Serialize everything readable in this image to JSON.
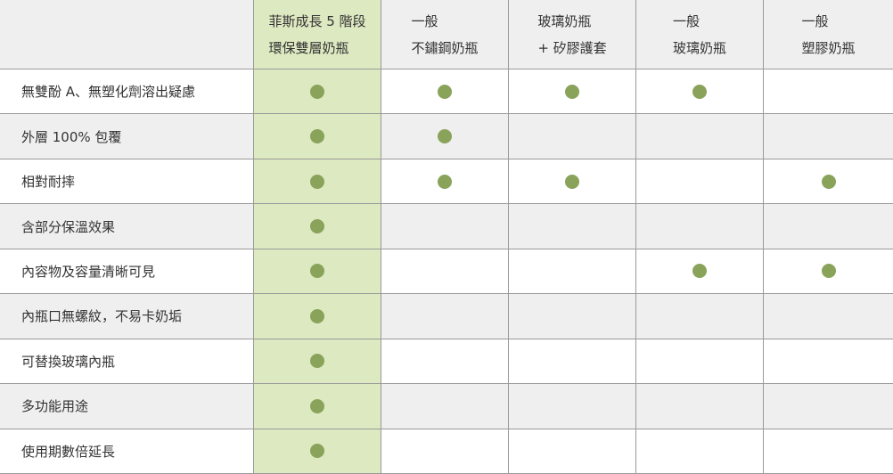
{
  "colors": {
    "highlight": "#dde9c1",
    "dot": "#8aa35a",
    "row_alt": "#efefef"
  },
  "columns": [
    {
      "line1": "菲斯成長 5 階段",
      "line2": "環保雙層奶瓶"
    },
    {
      "line1": "一般",
      "line2": "不鏽鋼奶瓶"
    },
    {
      "line1": "玻璃奶瓶",
      "line2": "+ 矽膠護套"
    },
    {
      "line1": "一般",
      "line2": "玻璃奶瓶"
    },
    {
      "line1": "一般",
      "line2": "塑膠奶瓶"
    }
  ],
  "rows": [
    {
      "label": "無雙酚 A、無塑化劑溶出疑慮",
      "marks": [
        true,
        true,
        true,
        true,
        false
      ]
    },
    {
      "label": "外層 100% 包覆",
      "marks": [
        true,
        true,
        false,
        false,
        false
      ]
    },
    {
      "label": "相對耐摔",
      "marks": [
        true,
        true,
        true,
        false,
        true
      ]
    },
    {
      "label": "含部分保溫效果",
      "marks": [
        true,
        false,
        false,
        false,
        false
      ]
    },
    {
      "label": "內容物及容量清晰可見",
      "marks": [
        true,
        false,
        false,
        true,
        true
      ]
    },
    {
      "label": "內瓶口無螺紋，不易卡奶垢",
      "marks": [
        true,
        false,
        false,
        false,
        false
      ]
    },
    {
      "label": "可替換玻璃內瓶",
      "marks": [
        true,
        false,
        false,
        false,
        false
      ]
    },
    {
      "label": "多功能用途",
      "marks": [
        true,
        false,
        false,
        false,
        false
      ]
    },
    {
      "label": "使用期數倍延長",
      "marks": [
        true,
        false,
        false,
        false,
        false
      ]
    }
  ]
}
